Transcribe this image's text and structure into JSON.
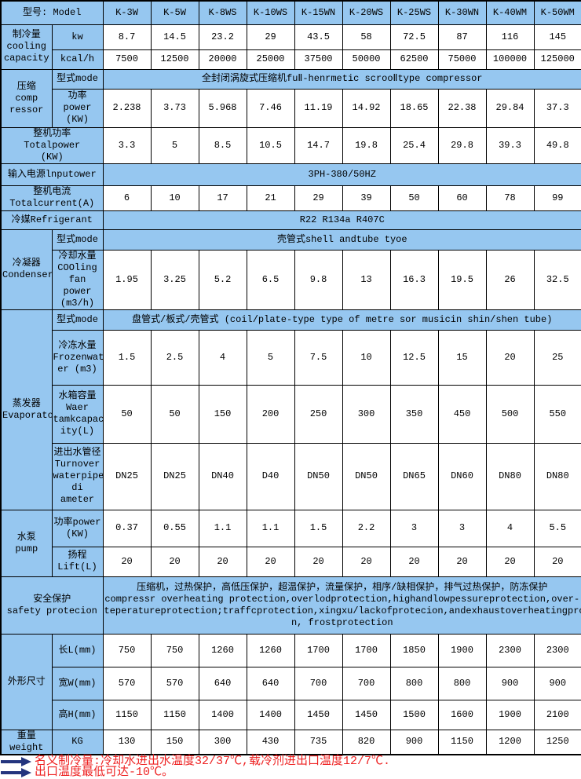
{
  "colors": {
    "header_blue": "#96C7F0",
    "note_red": "#EE2222",
    "arrow_navy": "#24357E",
    "border_black": "#000000"
  },
  "header": {
    "model_label": "型号: Model",
    "models": [
      "K-3W",
      "K-5W",
      "K-8WS",
      "K-10WS",
      "K-15WN",
      "K-20WS",
      "K-25WS",
      "K-30WN",
      "K-40WM",
      "K-50WM"
    ]
  },
  "cooling": {
    "label": "制冷量\ncooling\ncapacity",
    "kw_label": "kw",
    "kw_values": [
      "8.7",
      "14.5",
      "23.2",
      "29",
      "43.5",
      "58",
      "72.5",
      "87",
      "116",
      "145"
    ],
    "kcal_label": "kcal/h",
    "kcal_values": [
      "7500",
      "12500",
      "20000",
      "25000",
      "37500",
      "50000",
      "62500",
      "75000",
      "100000",
      "125000"
    ]
  },
  "compressor": {
    "label": "压缩\ncomp\nressor",
    "mode_label": "型式mode",
    "mode_value": "全封闭涡旋式压缩机fuⅡ-henrmetic scrooⅡtype compressor",
    "power_label": "功率\npower\n(KW)",
    "power_values": [
      "2.238",
      "3.73",
      "5.968",
      "7.46",
      "11.19",
      "14.92",
      "18.65",
      "22.38",
      "29.84",
      "37.3"
    ]
  },
  "total_power": {
    "label": "整机功率\nTotalpower\n(KW)",
    "values": [
      "3.3",
      "5",
      "8.5",
      "10.5",
      "14.7",
      "19.8",
      "25.4",
      "29.8",
      "39.3",
      "49.8"
    ]
  },
  "input_power": {
    "label": "输入电源lnputower",
    "value": "3PH-380/50HZ"
  },
  "total_current": {
    "label": "整机电流\nTotalcurrent(A)",
    "values": [
      "6",
      "10",
      "17",
      "21",
      "29",
      "39",
      "50",
      "60",
      "78",
      "99"
    ]
  },
  "refrigerant": {
    "label": "冷媒Refrigerant",
    "value": "R22 R134a R407C"
  },
  "condenser": {
    "label": "冷凝器\nCondenser",
    "mode_label": "型式mode",
    "mode_value": "壳管式shell andtube tyoe",
    "cooling_water_label": "冷却水量\nCOOling\nfan power\n(m3/h)",
    "cooling_water_values": [
      "1.95",
      "3.25",
      "5.2",
      "6.5",
      "9.8",
      "13",
      "16.3",
      "19.5",
      "26",
      "32.5"
    ]
  },
  "evaporator": {
    "label": "蒸发器\nEvaporator",
    "mode_label": "型式mode",
    "mode_value": "盘管式/板式/壳管式 (coil/plate-type type of metre sor musicin shin/shen tube)",
    "frozen_water_label": "冷冻水量\nFrozenwat\ner (m3)",
    "frozen_water_values": [
      "1.5",
      "2.5",
      "4",
      "5",
      "7.5",
      "10",
      "12.5",
      "15",
      "20",
      "25"
    ],
    "tank_label": "水箱容量\nWaer\ntamkcapac\nity(L)",
    "tank_values": [
      "50",
      "50",
      "150",
      "200",
      "250",
      "300",
      "350",
      "450",
      "500",
      "550"
    ],
    "pipe_label": "进出水管径\nTurnover\nwaterpipe\ndi ameter",
    "pipe_values": [
      "DN25",
      "DN25",
      "DN40",
      "D40",
      "DN50",
      "DN50",
      "DN65",
      "DN60",
      "DN80",
      "DN80"
    ]
  },
  "pump": {
    "label": "水泵\npump",
    "power_label": "功率power\n(KW)",
    "power_values": [
      "0.37",
      "0.55",
      "1.1",
      "1.1",
      "1.5",
      "2.2",
      "3",
      "3",
      "4",
      "5.5"
    ],
    "lift_label": "扬程\nLift(L)",
    "lift_values": [
      "20",
      "20",
      "20",
      "20",
      "20",
      "20",
      "20",
      "20",
      "20",
      "20"
    ]
  },
  "safety": {
    "label": "安全保护\nsafety protecion",
    "value": "压缩机，过热保护，高低压保护，超温保护，流量保护，相序/缺相保护，排气过热保护，防冻保护\ncompressr overheating protection,overlodprotection,highandlowpessureprotection,over-\nteperatureprotection;traffcprotection,xingxu/lackofprotecion,andexhaustoverheatingproteio\nn,    frostprotection"
  },
  "dimensions": {
    "label": "外形尺寸",
    "length_label": "长L(mm)",
    "length_values": [
      "750",
      "750",
      "1260",
      "1260",
      "1700",
      "1700",
      "1850",
      "1900",
      "2300",
      "2300"
    ],
    "width_label": "宽W(mm)",
    "width_values": [
      "570",
      "570",
      "640",
      "640",
      "700",
      "700",
      "800",
      "800",
      "900",
      "900"
    ],
    "height_label": "高H(mm)",
    "height_values": [
      "1150",
      "1150",
      "1400",
      "1400",
      "1450",
      "1450",
      "1500",
      "1600",
      "1900",
      "2100"
    ]
  },
  "weight": {
    "label": "重量\nweight",
    "unit": "KG",
    "values": [
      "130",
      "150",
      "300",
      "430",
      "735",
      "820",
      "900",
      "1150",
      "1200",
      "1250"
    ]
  },
  "notes": {
    "line1": "名义制冷量:冷却水进出水温度32/37℃,载冷剂进出口温度12/7℃.",
    "line2": "出口温度最低可达-10℃。"
  }
}
